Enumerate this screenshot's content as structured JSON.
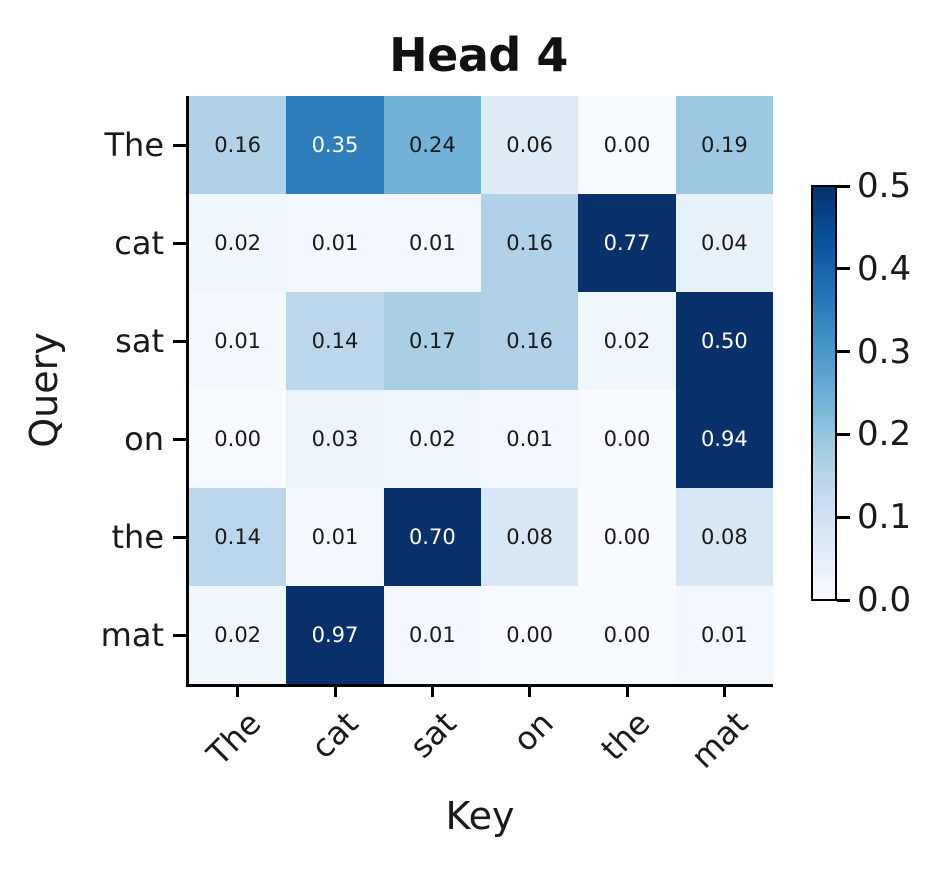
{
  "chart_data": {
    "type": "heatmap",
    "title": "Head 4",
    "xlabel": "Key",
    "ylabel": "Query",
    "x_categories": [
      "The",
      "cat",
      "sat",
      "on",
      "the",
      "mat"
    ],
    "y_categories": [
      "The",
      "cat",
      "sat",
      "on",
      "the",
      "mat"
    ],
    "values": [
      [
        0.16,
        0.35,
        0.24,
        0.06,
        0.0,
        0.19
      ],
      [
        0.02,
        0.01,
        0.01,
        0.16,
        0.77,
        0.04
      ],
      [
        0.01,
        0.14,
        0.17,
        0.16,
        0.02,
        0.5
      ],
      [
        0.0,
        0.03,
        0.02,
        0.01,
        0.0,
        0.94
      ],
      [
        0.14,
        0.01,
        0.7,
        0.08,
        0.0,
        0.08
      ],
      [
        0.02,
        0.97,
        0.01,
        0.0,
        0.0,
        0.01
      ]
    ],
    "value_decimals": 2,
    "vmin": 0.0,
    "vmax": 0.5,
    "colormap": "Blues",
    "colormap_stops": [
      "#f7fbff",
      "#deebf7",
      "#c6dbef",
      "#9ecae1",
      "#6baed6",
      "#4292c6",
      "#2171b5",
      "#08519c",
      "#08306b"
    ],
    "annotation_colors": {
      "dark_text": "#1a1a1a",
      "light_text": "#ffffff"
    },
    "grid": false,
    "legend": false,
    "colorbar": {
      "position": "right",
      "tick_labels": [
        "0.5",
        "0.4",
        "0.3",
        "0.2",
        "0.1",
        "0.0"
      ]
    }
  }
}
